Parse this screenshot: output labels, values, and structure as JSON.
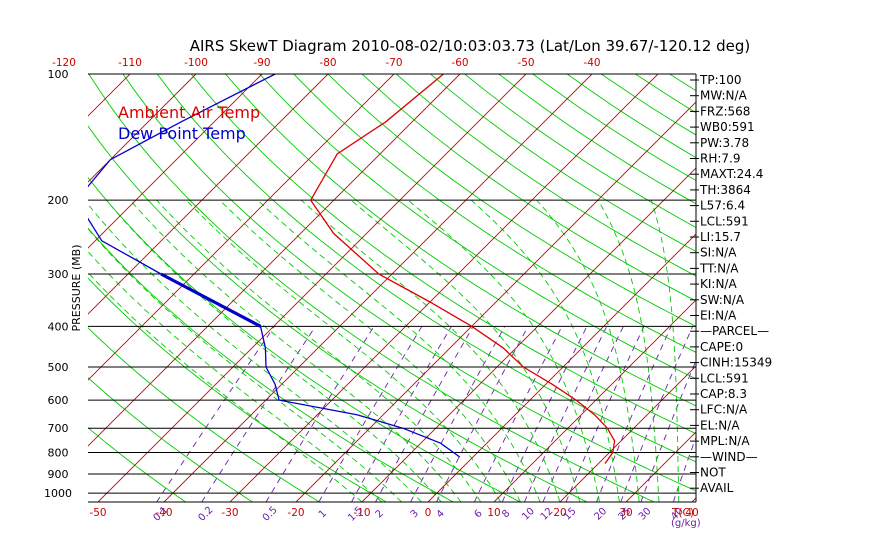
{
  "chart_data": {
    "type": "line",
    "title": "AIRS SkewT Diagram 2010-08-02/10:03:03.73 (Lat/Lon 39.67/-120.12 deg)",
    "ylabel": "PRESSURE (MB)",
    "xlabel": "T(C)",
    "mixing_ratio_unit": "(g/kg)",
    "y_scale": "log",
    "ylim": [
      1050,
      100
    ],
    "xlim_bottom_c": [
      -52,
      44
    ],
    "pressure_ticks": [
      100,
      200,
      300,
      400,
      500,
      600,
      700,
      800,
      900,
      1000
    ],
    "top_temp_ticks": [
      -120,
      -110,
      -100,
      -90,
      -80,
      -70,
      -60,
      -50,
      -40
    ],
    "bottom_temp_ticks": [
      -50,
      -40,
      -30,
      -20,
      -10,
      0,
      10,
      20,
      30,
      40
    ],
    "mixing_ratio_labels": [
      "0.1",
      "0.2",
      "0.5",
      "1",
      "1.5",
      "2",
      "3",
      "4",
      "6",
      "8",
      "10",
      "12",
      "15",
      "20",
      "25",
      "30",
      "40"
    ],
    "mixing_ratio_values": [
      0.1,
      0.2,
      0.5,
      1,
      1.5,
      2,
      3,
      4,
      6,
      8,
      10,
      12,
      15,
      20,
      25,
      30,
      40
    ],
    "grid": true,
    "legend_position": "top-left",
    "series": [
      {
        "name": "Ambient Air Temp",
        "color": "#dd0000",
        "points": [
          {
            "p": 100,
            "t": -62.5
          },
          {
            "p": 130,
            "t": -64
          },
          {
            "p": 155,
            "t": -66.5
          },
          {
            "p": 200,
            "t": -63.5
          },
          {
            "p": 240,
            "t": -55
          },
          {
            "p": 300,
            "t": -42
          },
          {
            "p": 350,
            "t": -30
          },
          {
            "p": 400,
            "t": -20
          },
          {
            "p": 450,
            "t": -12
          },
          {
            "p": 500,
            "t": -6
          },
          {
            "p": 550,
            "t": 1
          },
          {
            "p": 600,
            "t": 7
          },
          {
            "p": 650,
            "t": 12
          },
          {
            "p": 700,
            "t": 16
          },
          {
            "p": 725,
            "t": 17.5
          },
          {
            "p": 750,
            "t": 19
          },
          {
            "p": 800,
            "t": 20.5
          },
          {
            "p": 850,
            "t": 21
          }
        ]
      },
      {
        "name": "Dew Point Temp",
        "color": "#0000cc",
        "points": [
          {
            "p": 100,
            "t": -88
          },
          {
            "p": 130,
            "t": -95
          },
          {
            "p": 160,
            "t": -100
          },
          {
            "p": 200,
            "t": -99
          },
          {
            "p": 250,
            "t": -89
          },
          {
            "p": 300,
            "t": -75
          },
          {
            "p": 400,
            "t": -52
          },
          {
            "p": 450,
            "t": -48
          },
          {
            "p": 500,
            "t": -45
          },
          {
            "p": 550,
            "t": -41
          },
          {
            "p": 600,
            "t": -38
          },
          {
            "p": 650,
            "t": -24
          },
          {
            "p": 700,
            "t": -15
          },
          {
            "p": 760,
            "t": -7
          },
          {
            "p": 820,
            "t": -2
          }
        ]
      }
    ]
  },
  "stats": [
    "TP:100",
    "MW:N/A",
    "FRZ:568",
    "WB0:591",
    "PW:3.78",
    "RH:7.9",
    "MAXT:24.4",
    "TH:3864",
    "L57:6.4",
    "LCL:591",
    "LI:15.7",
    "SI:N/A",
    "TT:N/A",
    "KI:N/A",
    "SW:N/A",
    "EI:N/A",
    "—PARCEL—",
    "CAPE:0",
    "CINH:15349",
    "LCL:591",
    "CAP:8.3",
    "LFC:N/A",
    "EL:N/A",
    "MPL:N/A",
    "—WIND—",
    "NOT",
    "AVAIL"
  ],
  "colors": {
    "isotherm": "#cc0000",
    "dry_adiabat": "#00cc00",
    "moist_adiabat": "#00cc00",
    "mixing_ratio": "#6b1fa8",
    "isobar": "#000000",
    "temp": "#dd0000",
    "dewpoint": "#0000cc"
  }
}
